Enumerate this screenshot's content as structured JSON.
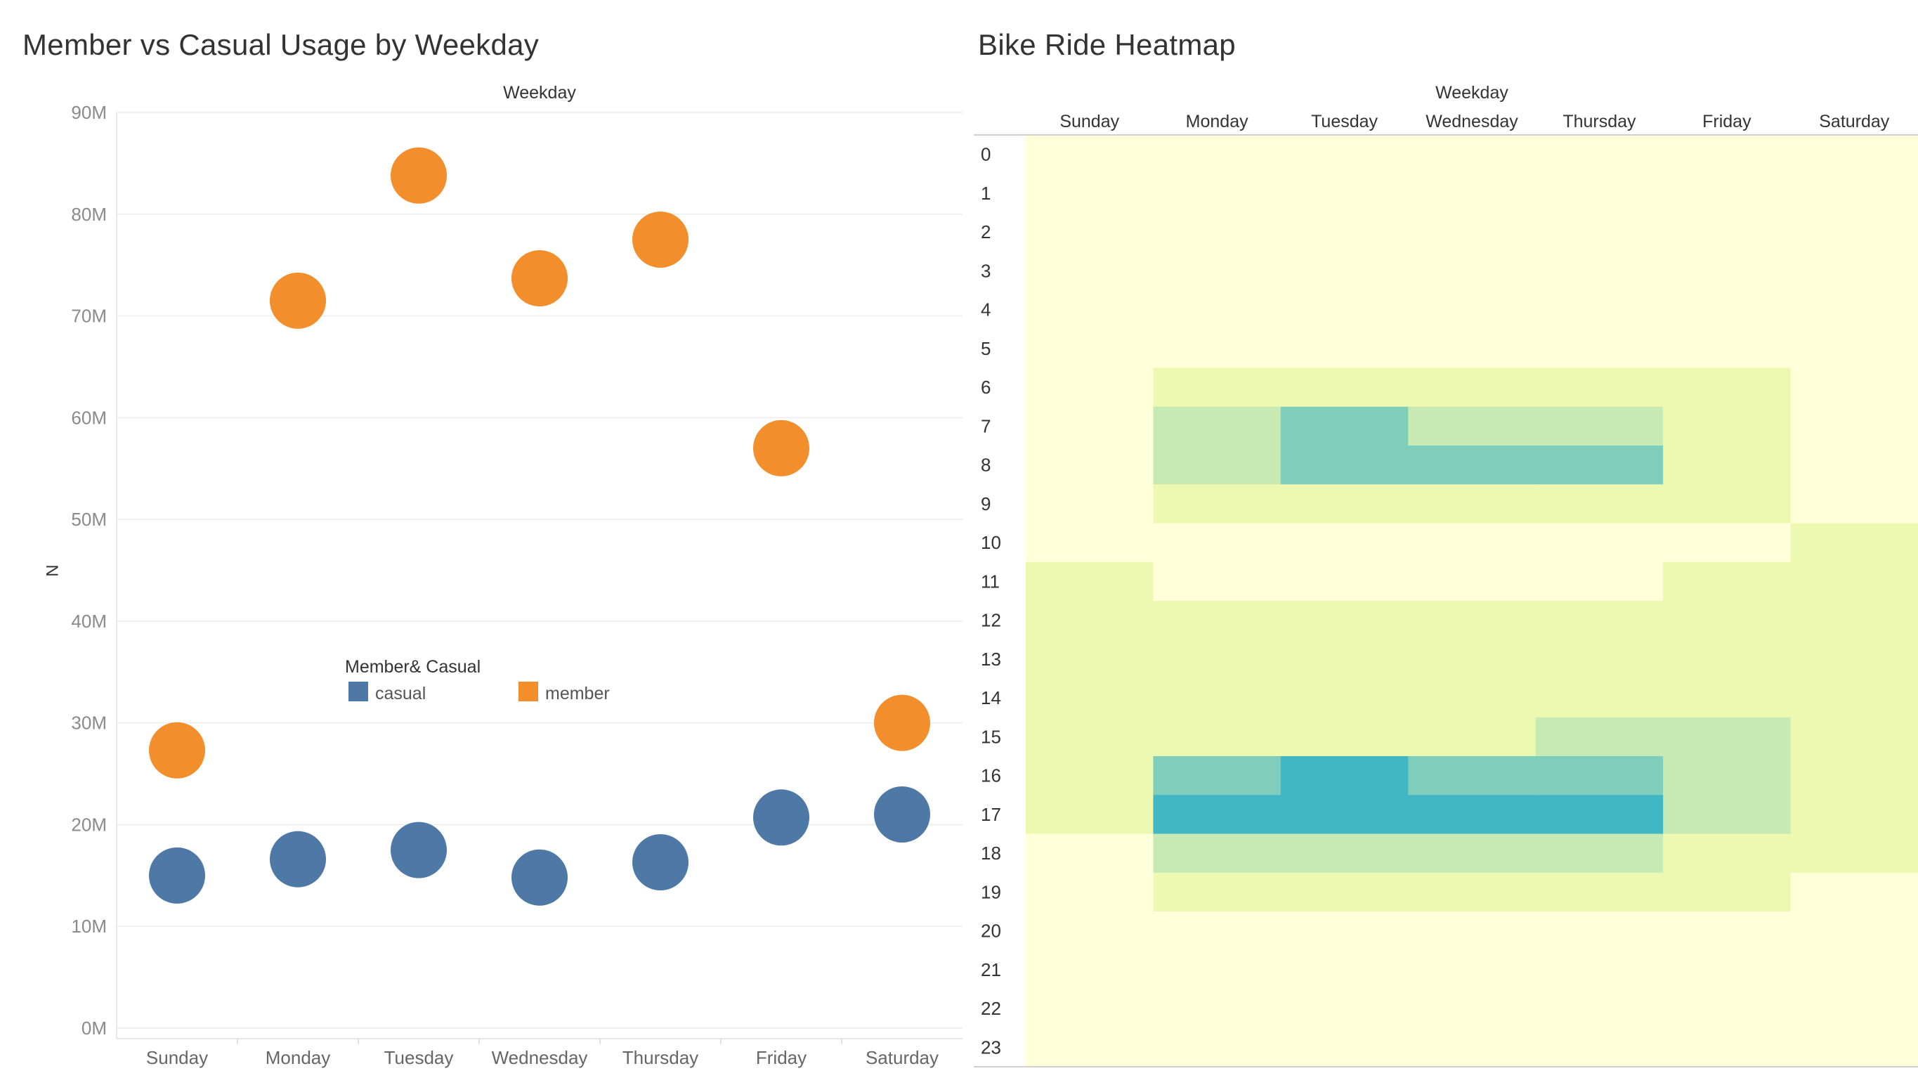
{
  "titles": {
    "left": "Member vs Casual Usage by Weekday",
    "right": "Bike Ride Heatmap"
  },
  "colors": {
    "casual": "#4e79a7",
    "member": "#f28e2b",
    "heat_scale": [
      "#ffffd9",
      "#edf8b1",
      "#c7e9b4",
      "#7fcdbb",
      "#41b6c4"
    ]
  },
  "chart_data": [
    {
      "type": "scatter",
      "title": "Member vs Casual Usage by Weekday",
      "xlabel": "Weekday",
      "ylabel": "N",
      "categories": [
        "Sunday",
        "Monday",
        "Tuesday",
        "Wednesday",
        "Thursday",
        "Friday",
        "Saturday"
      ],
      "ylim": [
        0,
        90000000
      ],
      "yticks": [
        "0M",
        "10M",
        "20M",
        "30M",
        "40M",
        "50M",
        "60M",
        "70M",
        "80M",
        "90M"
      ],
      "grid": true,
      "legend": {
        "title": "Member& Casual",
        "placement": "center"
      },
      "series": [
        {
          "name": "casual",
          "values": [
            15000000,
            16600000,
            17500000,
            14800000,
            16300000,
            20700000,
            21000000
          ]
        },
        {
          "name": "member",
          "values": [
            27300000,
            71500000,
            83800000,
            73700000,
            77500000,
            57000000,
            30000000
          ]
        }
      ]
    },
    {
      "type": "heatmap",
      "title": "Bike Ride Heatmap",
      "xlabel": "Weekday",
      "columns": [
        "Sunday",
        "Monday",
        "Tuesday",
        "Wednesday",
        "Thursday",
        "Friday",
        "Saturday"
      ],
      "rows": [
        "0",
        "1",
        "2",
        "3",
        "4",
        "5",
        "6",
        "7",
        "8",
        "9",
        "10",
        "11",
        "12",
        "13",
        "14",
        "15",
        "16",
        "17",
        "18",
        "19",
        "20",
        "21",
        "22",
        "23"
      ],
      "levels": [
        [
          0,
          0,
          0,
          0,
          0,
          0,
          0
        ],
        [
          0,
          0,
          0,
          0,
          0,
          0,
          0
        ],
        [
          0,
          0,
          0,
          0,
          0,
          0,
          0
        ],
        [
          0,
          0,
          0,
          0,
          0,
          0,
          0
        ],
        [
          0,
          0,
          0,
          0,
          0,
          0,
          0
        ],
        [
          0,
          0,
          0,
          0,
          0,
          0,
          0
        ],
        [
          0,
          1,
          1,
          1,
          1,
          1,
          0
        ],
        [
          0,
          2,
          3,
          2,
          2,
          1,
          0
        ],
        [
          0,
          2,
          3,
          3,
          3,
          1,
          0
        ],
        [
          0,
          1,
          1,
          1,
          1,
          1,
          0
        ],
        [
          0,
          0,
          0,
          0,
          0,
          0,
          1
        ],
        [
          1,
          0,
          0,
          0,
          0,
          1,
          1
        ],
        [
          1,
          1,
          1,
          1,
          1,
          1,
          1
        ],
        [
          1,
          1,
          1,
          1,
          1,
          1,
          1
        ],
        [
          1,
          1,
          1,
          1,
          1,
          1,
          1
        ],
        [
          1,
          1,
          1,
          1,
          2,
          2,
          1
        ],
        [
          1,
          3,
          4,
          3,
          3,
          2,
          1
        ],
        [
          1,
          4,
          4,
          4,
          4,
          2,
          1
        ],
        [
          0,
          2,
          2,
          2,
          2,
          1,
          1
        ],
        [
          0,
          1,
          1,
          1,
          1,
          1,
          0
        ],
        [
          0,
          0,
          0,
          0,
          0,
          0,
          0
        ],
        [
          0,
          0,
          0,
          0,
          0,
          0,
          0
        ],
        [
          0,
          0,
          0,
          0,
          0,
          0,
          0
        ],
        [
          0,
          0,
          0,
          0,
          0,
          0,
          0
        ]
      ]
    }
  ]
}
